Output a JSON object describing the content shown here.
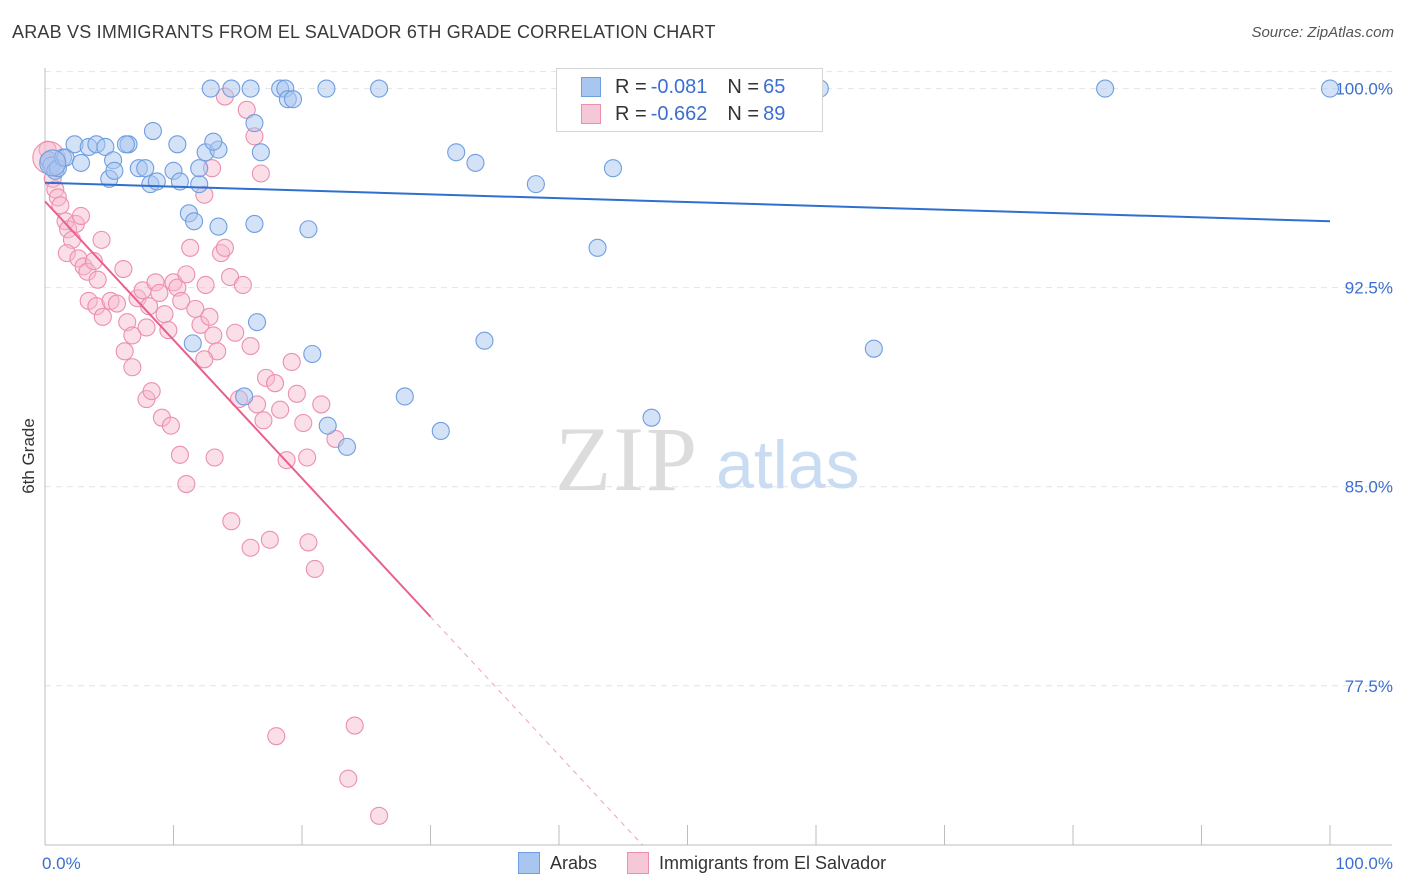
{
  "title": "ARAB VS IMMIGRANTS FROM EL SALVADOR 6TH GRADE CORRELATION CHART",
  "source": "Source: ZipAtlas.com",
  "watermark": {
    "zip": "ZIP",
    "atlas": "atlas"
  },
  "legend": {
    "r_label": "R =",
    "n_label": "N =",
    "rows": [
      {
        "r": "-0.081",
        "n": "65"
      },
      {
        "r": "-0.662",
        "n": "89"
      }
    ]
  },
  "colors": {
    "arabs_fill": "#a9c6f0",
    "arabs_stroke": "#6f9ee0",
    "arabs_line": "#2f6fd0",
    "salv_fill": "#f6b8cc",
    "salv_stroke": "#ec8fae",
    "salv_line": "#e8608f",
    "tick_label": "#3b6fcf",
    "grid": "#e4e4e4"
  },
  "chart_data": {
    "type": "scatter",
    "title": "ARAB VS IMMIGRANTS FROM EL SALVADOR 6TH GRADE CORRELATION CHART",
    "xlabel": "",
    "ylabel": "6th Grade",
    "xlim": [
      0,
      100
    ],
    "ylim": [
      71.5,
      100.7
    ],
    "x_tick_labels": [
      "0.0%",
      "100.0%"
    ],
    "y_ticks": [
      {
        "value": 100.0,
        "label": "100.0%"
      },
      {
        "value": 92.5,
        "label": "92.5%"
      },
      {
        "value": 85.0,
        "label": "85.0%"
      },
      {
        "value": 77.5,
        "label": "77.5%"
      }
    ],
    "grid": true,
    "legend_position": "bottom-center",
    "series": [
      {
        "name": "Arabs",
        "r": -0.081,
        "n": 65,
        "trend": {
          "x": [
            0,
            100
          ],
          "y": [
            96.45,
            95.0
          ]
        },
        "points": [
          [
            0.3,
            97.3
          ],
          [
            0.5,
            97.1
          ],
          [
            0.8,
            96.9
          ],
          [
            1.0,
            97.0
          ],
          [
            1.4,
            97.4
          ],
          [
            1.6,
            97.4
          ],
          [
            2.3,
            97.9
          ],
          [
            3.4,
            97.8
          ],
          [
            2.8,
            97.2
          ],
          [
            4.0,
            97.9
          ],
          [
            4.7,
            97.8
          ],
          [
            6.5,
            97.9
          ],
          [
            6.3,
            97.9
          ],
          [
            5.3,
            97.3
          ],
          [
            5.0,
            96.6
          ],
          [
            5.4,
            96.9
          ],
          [
            7.3,
            97.0
          ],
          [
            7.8,
            97.0
          ],
          [
            8.2,
            96.4
          ],
          [
            8.7,
            96.5
          ],
          [
            8.4,
            98.4
          ],
          [
            10.3,
            97.9
          ],
          [
            10.0,
            96.9
          ],
          [
            10.5,
            96.5
          ],
          [
            12.0,
            96.4
          ],
          [
            12.0,
            97.0
          ],
          [
            12.5,
            97.6
          ],
          [
            13.5,
            97.7
          ],
          [
            13.1,
            98.0
          ],
          [
            11.2,
            95.3
          ],
          [
            11.6,
            95.0
          ],
          [
            13.5,
            94.8
          ],
          [
            16.3,
            94.9
          ],
          [
            20.5,
            94.7
          ],
          [
            12.9,
            100.0
          ],
          [
            14.5,
            100.0
          ],
          [
            16.0,
            100.0
          ],
          [
            18.3,
            100.0
          ],
          [
            18.7,
            100.0
          ],
          [
            18.9,
            99.6
          ],
          [
            19.3,
            99.6
          ],
          [
            21.9,
            100.0
          ],
          [
            26.0,
            100.0
          ],
          [
            16.3,
            98.7
          ],
          [
            16.8,
            97.6
          ],
          [
            32.0,
            97.6
          ],
          [
            33.5,
            97.2
          ],
          [
            38.2,
            96.4
          ],
          [
            44.2,
            97.0
          ],
          [
            43.0,
            94.0
          ],
          [
            47.3,
            100.0
          ],
          [
            60.3,
            100.0
          ],
          [
            82.5,
            100.0
          ],
          [
            100.0,
            100.0
          ],
          [
            11.5,
            90.4
          ],
          [
            16.5,
            91.2
          ],
          [
            20.8,
            90.0
          ],
          [
            34.2,
            90.5
          ],
          [
            64.5,
            90.2
          ],
          [
            15.5,
            88.4
          ],
          [
            28.0,
            88.4
          ],
          [
            22.0,
            87.3
          ],
          [
            23.5,
            86.5
          ],
          [
            30.8,
            87.1
          ],
          [
            47.2,
            87.6
          ]
        ]
      },
      {
        "name": "Immigrants from El Salvador",
        "r": -0.662,
        "n": 89,
        "trend": {
          "x": [
            0,
            30
          ],
          "y": [
            95.75,
            80.1
          ]
        },
        "trend_dashed": {
          "x": [
            30,
            100
          ],
          "y": [
            80.1,
            43.6
          ]
        },
        "points": [
          [
            0.2,
            97.7
          ],
          [
            0.4,
            97.2
          ],
          [
            0.6,
            96.6
          ],
          [
            0.8,
            96.2
          ],
          [
            1.0,
            95.9
          ],
          [
            1.2,
            95.6
          ],
          [
            1.6,
            95.0
          ],
          [
            1.8,
            94.7
          ],
          [
            2.1,
            94.3
          ],
          [
            2.4,
            94.9
          ],
          [
            2.8,
            95.2
          ],
          [
            1.7,
            93.8
          ],
          [
            2.6,
            93.6
          ],
          [
            3.0,
            93.3
          ],
          [
            3.3,
            93.1
          ],
          [
            3.8,
            93.5
          ],
          [
            4.1,
            92.8
          ],
          [
            4.4,
            94.3
          ],
          [
            3.4,
            92.0
          ],
          [
            4.0,
            91.8
          ],
          [
            4.5,
            91.4
          ],
          [
            5.1,
            92.0
          ],
          [
            5.6,
            91.9
          ],
          [
            6.1,
            93.2
          ],
          [
            6.4,
            91.2
          ],
          [
            6.8,
            90.7
          ],
          [
            6.2,
            90.1
          ],
          [
            7.2,
            92.1
          ],
          [
            7.6,
            92.4
          ],
          [
            7.9,
            91.0
          ],
          [
            8.1,
            91.8
          ],
          [
            8.6,
            92.7
          ],
          [
            8.9,
            92.3
          ],
          [
            9.3,
            91.5
          ],
          [
            9.6,
            90.9
          ],
          [
            10.0,
            92.7
          ],
          [
            10.3,
            92.5
          ],
          [
            10.6,
            92.0
          ],
          [
            11.0,
            93.0
          ],
          [
            11.3,
            94.0
          ],
          [
            11.7,
            91.7
          ],
          [
            12.1,
            91.1
          ],
          [
            12.5,
            92.6
          ],
          [
            12.8,
            91.4
          ],
          [
            13.1,
            90.7
          ],
          [
            13.4,
            90.1
          ],
          [
            13.7,
            93.8
          ],
          [
            14.0,
            94.0
          ],
          [
            14.4,
            92.9
          ],
          [
            14.8,
            90.8
          ],
          [
            15.1,
            88.3
          ],
          [
            15.4,
            92.6
          ],
          [
            16.0,
            90.3
          ],
          [
            16.5,
            88.1
          ],
          [
            17.0,
            87.5
          ],
          [
            17.2,
            89.1
          ],
          [
            17.9,
            88.9
          ],
          [
            18.3,
            87.9
          ],
          [
            18.8,
            86.0
          ],
          [
            19.2,
            89.7
          ],
          [
            19.6,
            88.5
          ],
          [
            20.1,
            87.4
          ],
          [
            20.4,
            86.1
          ],
          [
            6.8,
            89.5
          ],
          [
            7.9,
            88.3
          ],
          [
            8.3,
            88.6
          ],
          [
            9.1,
            87.6
          ],
          [
            9.8,
            87.3
          ],
          [
            10.5,
            86.2
          ],
          [
            11.0,
            85.1
          ],
          [
            12.4,
            89.8
          ],
          [
            13.2,
            86.1
          ],
          [
            14.5,
            83.7
          ],
          [
            16.0,
            82.7
          ],
          [
            17.5,
            83.0
          ],
          [
            20.5,
            82.9
          ],
          [
            21.0,
            81.9
          ],
          [
            21.5,
            88.1
          ],
          [
            15.7,
            99.2
          ],
          [
            16.3,
            98.2
          ],
          [
            16.8,
            96.8
          ],
          [
            12.4,
            96.0
          ],
          [
            13.0,
            97.0
          ],
          [
            14.0,
            99.7
          ],
          [
            18.0,
            75.6
          ],
          [
            24.1,
            76.0
          ],
          [
            23.6,
            74.0
          ],
          [
            26.0,
            72.6
          ],
          [
            22.6,
            86.8
          ]
        ]
      }
    ]
  }
}
